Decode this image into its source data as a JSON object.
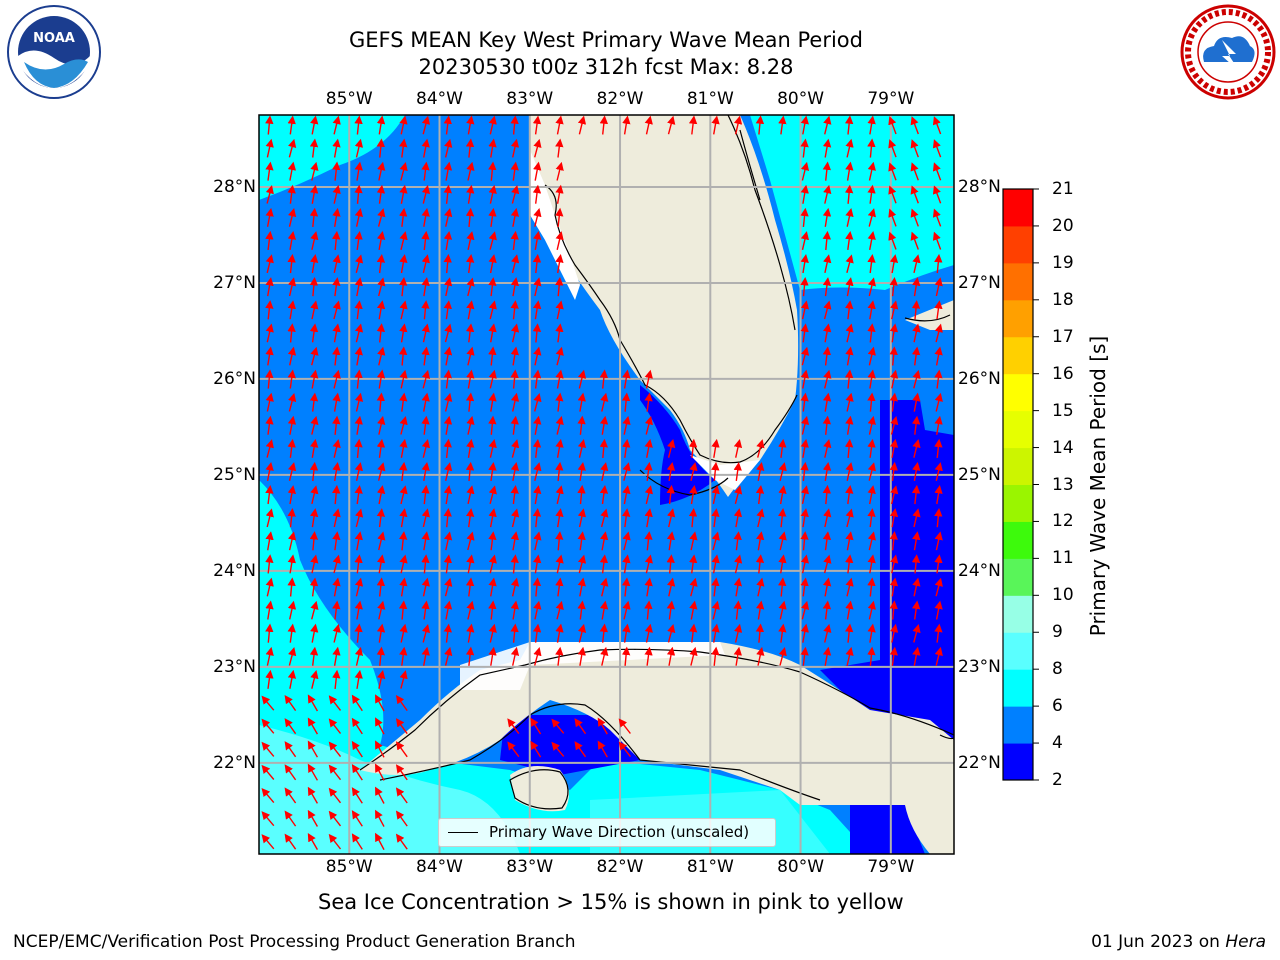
{
  "title_line1": "GEFS MEAN Key West Primary Wave Mean Period",
  "title_line2": "20230530 t00z 312h fcst   Max: 8.28",
  "map": {
    "lon_labels": [
      "85°W",
      "84°W",
      "83°W",
      "82°W",
      "81°W",
      "80°W",
      "79°W"
    ],
    "lat_labels": [
      "28°N",
      "27°N",
      "26°N",
      "25°N",
      "24°N",
      "23°N",
      "22°N"
    ],
    "lon_values": [
      -85,
      -84,
      -83,
      -82,
      -81,
      -80,
      -79
    ],
    "lat_values": [
      28,
      27,
      26,
      25,
      24,
      23,
      22
    ],
    "extent": {
      "lon_min": -86,
      "lon_max": -78.3,
      "lat_min": 21.05,
      "lat_max": 28.75
    },
    "grid": true,
    "land_color": "#eeecdc",
    "arrow_color": "#ff0000",
    "legend_label": "Primary Wave Direction (unscaled)"
  },
  "colorbar": {
    "label": "Primary Wave Mean Period [s]",
    "ticks": [
      "21",
      "20",
      "19",
      "18",
      "17",
      "16",
      "15",
      "14",
      "13",
      "12",
      "11",
      "10",
      "9",
      "8",
      "6",
      "4",
      "2"
    ],
    "levels": [
      2,
      4,
      6,
      8,
      9,
      10,
      11,
      12,
      13,
      14,
      15,
      16,
      17,
      18,
      19,
      20,
      21
    ],
    "colors": [
      "#0000ff",
      "#0080ff",
      "#00ffff",
      "#5affff",
      "#97ffe6",
      "#59f559",
      "#3dfa0c",
      "#9af500",
      "#ccf500",
      "#e6ff00",
      "#ffff00",
      "#ffd000",
      "#ffa000",
      "#ff7000",
      "#ff4000",
      "#ff0000"
    ]
  },
  "subtitle": "Sea Ice Concentration > 15% is shown in pink to yellow",
  "footer": {
    "left": "NCEP/EMC/Verification Post Processing Product Generation Branch",
    "date": "01 Jun 2023 on ",
    "host": "Hera"
  },
  "logos": {
    "noaa_text": "NOAA",
    "nws_text": "NATIONAL WEATHER SERVICE"
  }
}
